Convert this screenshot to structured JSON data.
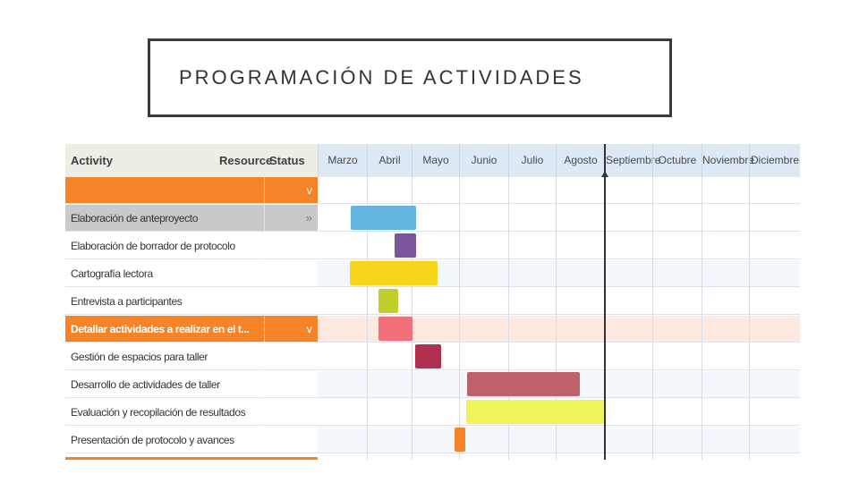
{
  "title": "PROGRAMACIÓN DE ACTIVIDADES",
  "header": {
    "activity": "Activity",
    "resource": "Resource",
    "status": "Status",
    "months": [
      "Marzo",
      "Abril",
      "Mayo",
      "Junio",
      "Julio",
      "Agosto",
      "Septiembre",
      "Octubre",
      "Noviembre",
      "Diciembre"
    ]
  },
  "rows": [
    {
      "type": "group",
      "name": "",
      "status": "v"
    },
    {
      "type": "highlight",
      "name": "Elaboración de  anteproyecto",
      "status": "»"
    },
    {
      "type": "normal",
      "name": "Elaboración de borrador de  protocolo",
      "status": ""
    },
    {
      "type": "normal",
      "name": "Cartografía lectora",
      "status": ""
    },
    {
      "type": "normal",
      "name": "Entrevista a participantes",
      "status": ""
    },
    {
      "type": "group",
      "name": "Detallar actividades a realizar en el t...",
      "status": "v"
    },
    {
      "type": "normal",
      "name": "Gestión de espacios para taller",
      "status": ""
    },
    {
      "type": "normal",
      "name": "Desarrollo de actividades de taller",
      "status": ""
    },
    {
      "type": "normal",
      "name": "Evaluación y recopilación de resultados",
      "status": ""
    },
    {
      "type": "normal",
      "name": "Presentación de protocolo y avances",
      "status": ""
    }
  ],
  "bars": [
    {
      "row": 1,
      "color": "#64b6de",
      "start_month": 0.68,
      "end_month": 2.1
    },
    {
      "row": 2,
      "color": "#7a559e",
      "start_month": 1.62,
      "end_month": 2.1
    },
    {
      "row": 3,
      "color": "#f6d51a",
      "start_month": 0.66,
      "end_month": 2.55
    },
    {
      "row": 4,
      "color": "#c2cf2a",
      "start_month": 1.25,
      "end_month": 1.7
    },
    {
      "row": 5,
      "color": "#f36f7a",
      "start_month": 1.25,
      "end_month": 2.02
    },
    {
      "row": 6,
      "color": "#b0304e",
      "start_month": 2.07,
      "end_month": 2.62
    },
    {
      "row": 7,
      "color": "#c0606a",
      "start_month": 3.17,
      "end_month": 5.5
    },
    {
      "row": 8,
      "color": "#eff45a",
      "start_month": 3.15,
      "end_month": 6.0
    },
    {
      "row": 9,
      "color": "#f48427",
      "start_month": 2.9,
      "end_month": 3.13
    }
  ],
  "today_month": 6.0
}
